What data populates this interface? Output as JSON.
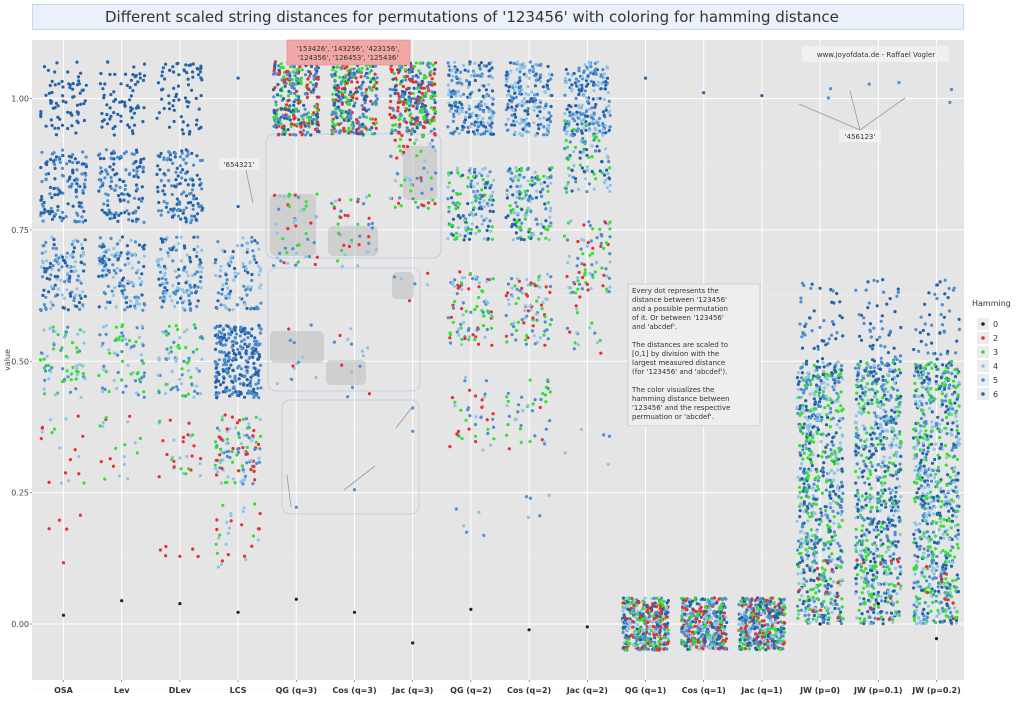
{
  "chart_data": {
    "type": "scatter",
    "title": "Different scaled string distances for permutations of '123456' with coloring for hamming distance",
    "xlabel": "",
    "ylabel": "value",
    "ylim": [
      -0.1,
      1.1
    ],
    "yticks": [
      0.0,
      0.25,
      0.5,
      0.75,
      1.0
    ],
    "ytick_labels": [
      "0.00",
      "0.25",
      "0.50",
      "0.75",
      "1.00"
    ],
    "categories": [
      "OSA",
      "Lev",
      "DLev",
      "LCS",
      "QG (q=3)",
      "Cos (q=3)",
      "Jac (q=3)",
      "QG (q=2)",
      "Cos (q=2)",
      "Jac (q=2)",
      "QG (q=1)",
      "Cos (q=1)",
      "Jac (q=1)",
      "JW (p=0)",
      "JW (p=0.1)",
      "JW (p=0.2)"
    ],
    "legend": {
      "title": "Hamming",
      "position": "right",
      "entries": [
        {
          "label": "0",
          "color": "#222222"
        },
        {
          "label": "2",
          "color": "#e8312f"
        },
        {
          "label": "3",
          "color": "#35e035"
        },
        {
          "label": "4",
          "color": "#8fc4e6"
        },
        {
          "label": "5",
          "color": "#4d8ed0"
        },
        {
          "label": "6",
          "color": "#2563a8"
        }
      ]
    },
    "annotations": {
      "credit": "www.joyofdata.de - Raffael Vogler",
      "reverse_label": "'654321'",
      "rotation_label": "'456123'",
      "qgram_group_label_line1": "'153426', '143256', '423156',",
      "qgram_group_label_line2": "'124356', '126453', '125436'",
      "explanation": [
        "Every dot represents the",
        "distance between '123456'",
        "and a possible permutation",
        "of it. Or between '123456'",
        "and 'abcdef'.",
        "",
        "The distances are scaled to",
        "[0,1] by division with the",
        "largest measured distance",
        "(for '123456' and 'abcdef').",
        "",
        "The color visualizes the",
        "hamming distance between",
        "'123456' and the respective",
        "permuation or 'abcdef'."
      ]
    },
    "clusters": [
      {
        "cat": 0,
        "levels": [
          [
            1.0,
            0.07,
            70,
            [
              6
            ]
          ],
          [
            0.8333,
            0.07,
            130,
            [
              6,
              5
            ]
          ],
          [
            0.6667,
            0.07,
            130,
            [
              5,
              6,
              4
            ]
          ],
          [
            0.5,
            0.07,
            70,
            [
              3,
              4,
              5
            ]
          ],
          [
            0.3333,
            0.07,
            20,
            [
              2,
              3,
              4
            ]
          ],
          [
            0.2,
            0.02,
            4,
            [
              2
            ]
          ],
          [
            0.1167,
            0.0,
            1,
            [
              2
            ]
          ],
          [
            0.0167,
            0.0,
            1,
            [
              0
            ]
          ]
        ]
      },
      {
        "cat": 1,
        "levels": [
          [
            1.0,
            0.07,
            70,
            [
              6
            ]
          ],
          [
            0.8333,
            0.07,
            130,
            [
              6,
              5
            ]
          ],
          [
            0.6667,
            0.07,
            130,
            [
              5,
              6,
              4
            ]
          ],
          [
            0.5,
            0.07,
            70,
            [
              3,
              4,
              5
            ]
          ],
          [
            0.3333,
            0.07,
            20,
            [
              2,
              3,
              4
            ]
          ],
          [
            0.0444,
            0.0,
            1,
            [
              0
            ]
          ]
        ]
      },
      {
        "cat": 2,
        "levels": [
          [
            1.0,
            0.07,
            70,
            [
              6
            ]
          ],
          [
            0.8333,
            0.07,
            130,
            [
              6,
              5
            ]
          ],
          [
            0.6667,
            0.07,
            130,
            [
              5,
              6,
              4
            ]
          ],
          [
            0.5,
            0.07,
            70,
            [
              3,
              4,
              5
            ]
          ],
          [
            0.3333,
            0.07,
            30,
            [
              2,
              3,
              4
            ]
          ],
          [
            0.1444,
            0.02,
            6,
            [
              2
            ]
          ],
          [
            0.0389,
            0.0,
            1,
            [
              0
            ]
          ]
        ]
      },
      {
        "cat": 3,
        "levels": [
          [
            1.0389,
            0.0,
            1,
            [
              6
            ]
          ],
          [
            0.7944,
            0.0,
            1,
            [
              6
            ]
          ],
          [
            0.6667,
            0.07,
            100,
            [
              5,
              6,
              4
            ]
          ],
          [
            0.5,
            0.07,
            250,
            [
              6,
              5
            ]
          ],
          [
            0.3333,
            0.07,
            110,
            [
              2,
              3,
              4,
              5
            ]
          ],
          [
            0.1667,
            0.07,
            30,
            [
              2,
              3,
              4
            ]
          ],
          [
            0.0222,
            0.0,
            1,
            [
              0
            ]
          ]
        ]
      },
      {
        "cat": 4,
        "levels": [
          [
            1.0,
            0.07,
            280,
            [
              6,
              5,
              3,
              2
            ]
          ],
          [
            0.75,
            0.07,
            50,
            [
              3,
              4,
              5,
              2
            ]
          ],
          [
            0.5,
            0.07,
            12,
            [
              2,
              4,
              5
            ]
          ],
          [
            0.2222,
            0.0,
            1,
            [
              5
            ]
          ],
          [
            0.0472,
            0.0,
            1,
            [
              0
            ]
          ]
        ]
      },
      {
        "cat": 5,
        "levels": [
          [
            1.0,
            0.07,
            280,
            [
              6,
              5,
              3,
              2
            ]
          ],
          [
            0.75,
            0.07,
            40,
            [
              3,
              4,
              5,
              2
            ]
          ],
          [
            0.5,
            0.07,
            14,
            [
              2,
              4,
              5
            ]
          ],
          [
            0.2556,
            0.0,
            1,
            [
              5
            ]
          ],
          [
            0.0222,
            0.0,
            1,
            [
              0
            ]
          ]
        ]
      },
      {
        "cat": 6,
        "levels": [
          [
            1.0,
            0.07,
            280,
            [
              6,
              5,
              3,
              2
            ]
          ],
          [
            0.8611,
            0.07,
            60,
            [
              3,
              4,
              5,
              2
            ]
          ],
          [
            0.6389,
            0.03,
            6,
            [
              2,
              4,
              5
            ]
          ],
          [
            0.4111,
            0.0,
            1,
            [
              5
            ]
          ],
          [
            0.3667,
            0.0,
            1,
            [
              5
            ]
          ],
          [
            -0.0361,
            0.0,
            1,
            [
              0
            ]
          ]
        ]
      },
      {
        "cat": 7,
        "levels": [
          [
            1.0,
            0.07,
            200,
            [
              6,
              5,
              4
            ]
          ],
          [
            0.8,
            0.07,
            150,
            [
              5,
              6,
              4,
              3
            ]
          ],
          [
            0.6,
            0.07,
            90,
            [
              4,
              5,
              3,
              2
            ]
          ],
          [
            0.4,
            0.07,
            40,
            [
              3,
              4,
              5,
              2
            ]
          ],
          [
            0.2,
            0.05,
            5,
            [
              4,
              5
            ]
          ],
          [
            0.0278,
            0.0,
            1,
            [
              0
            ]
          ]
        ]
      },
      {
        "cat": 8,
        "levels": [
          [
            1.0,
            0.07,
            200,
            [
              6,
              5,
              4
            ]
          ],
          [
            0.8,
            0.07,
            150,
            [
              5,
              6,
              4,
              3
            ]
          ],
          [
            0.6,
            0.07,
            90,
            [
              4,
              5,
              3,
              2
            ]
          ],
          [
            0.4,
            0.07,
            40,
            [
              3,
              4,
              5,
              2
            ]
          ],
          [
            0.2222,
            0.03,
            5,
            [
              4,
              5
            ]
          ],
          [
            -0.0111,
            0.0,
            1,
            [
              0
            ]
          ]
        ]
      },
      {
        "cat": 9,
        "levels": [
          [
            1.0,
            0.07,
            200,
            [
              6,
              5,
              4
            ]
          ],
          [
            0.8889,
            0.07,
            100,
            [
              5,
              6,
              4,
              3
            ]
          ],
          [
            0.7,
            0.07,
            80,
            [
              4,
              5,
              3,
              2
            ]
          ],
          [
            0.5778,
            0.07,
            20,
            [
              3,
              4,
              5,
              2
            ]
          ],
          [
            0.3333,
            0.04,
            5,
            [
              4,
              5
            ]
          ],
          [
            -0.0056,
            0.0,
            1,
            [
              0
            ]
          ]
        ]
      },
      {
        "cat": 10,
        "levels": [
          [
            1.0389,
            0.0,
            1,
            [
              6
            ]
          ],
          [
            0.0,
            0.05,
            400,
            [
              6,
              5,
              4,
              3,
              2
            ]
          ]
        ]
      },
      {
        "cat": 11,
        "levels": [
          [
            1.0111,
            0.0,
            1,
            [
              6
            ]
          ],
          [
            0.0,
            0.05,
            400,
            [
              6,
              5,
              4,
              3,
              2
            ]
          ]
        ]
      },
      {
        "cat": 12,
        "levels": [
          [
            1.0056,
            0.0,
            1,
            [
              6
            ]
          ],
          [
            0.0,
            0.05,
            400,
            [
              6,
              5,
              4,
              3,
              2
            ]
          ]
        ]
      },
      {
        "cat": 13,
        "levels": [
          [
            0.5556,
            0.1,
            60,
            [
              6,
              5
            ]
          ],
          [
            0.25,
            0.25,
            700,
            [
              6,
              5,
              4,
              3
            ]
          ],
          [
            0.0667,
            0.06,
            20,
            [
              2,
              3
            ]
          ],
          [
            0.0,
            0.0,
            1,
            [
              0
            ]
          ],
          [
            1.0,
            0.02,
            2,
            [
              5
            ]
          ]
        ]
      },
      {
        "cat": 14,
        "levels": [
          [
            0.5556,
            0.1,
            60,
            [
              6,
              5
            ]
          ],
          [
            0.25,
            0.25,
            700,
            [
              6,
              5,
              4,
              3
            ]
          ],
          [
            0.0667,
            0.06,
            20,
            [
              2,
              3
            ]
          ],
          [
            0.0389,
            0.0,
            1,
            [
              0
            ]
          ],
          [
            1.0222,
            0.02,
            2,
            [
              5
            ]
          ]
        ]
      },
      {
        "cat": 15,
        "levels": [
          [
            0.5556,
            0.1,
            60,
            [
              6,
              5
            ]
          ],
          [
            0.25,
            0.25,
            700,
            [
              6,
              5,
              4,
              3
            ]
          ],
          [
            0.0667,
            0.06,
            20,
            [
              2,
              3
            ]
          ],
          [
            -0.0278,
            0.0,
            1,
            [
              0
            ]
          ],
          [
            1.0111,
            0.02,
            2,
            [
              5
            ]
          ]
        ]
      }
    ]
  }
}
